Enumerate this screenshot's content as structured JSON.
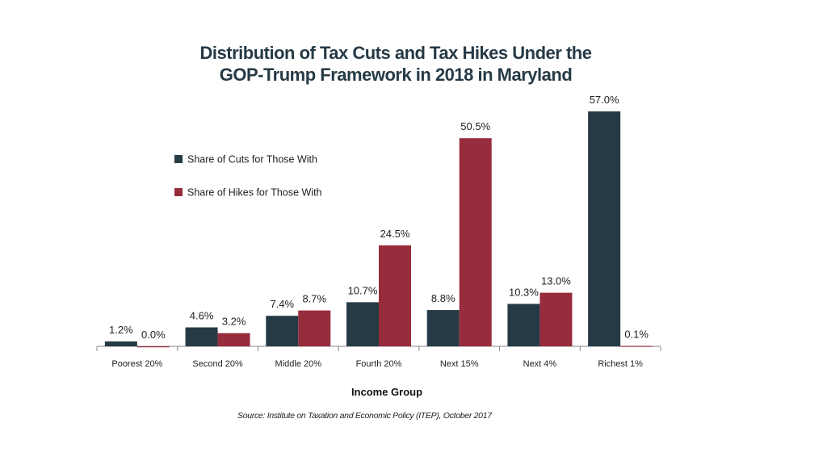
{
  "chart_data": {
    "type": "bar",
    "title_line1": "Distribution of Tax Cuts and Tax Hikes Under the",
    "title_line2": "GOP-Trump Framework in 2018 in Maryland",
    "xlabel": "Income Group",
    "ylabel": "",
    "ylim": [
      0,
      57
    ],
    "grid": false,
    "legend_position": "top-left",
    "categories": [
      "Poorest 20%",
      "Second 20%",
      "Middle 20%",
      "Fourth 20%",
      "Next 15%",
      "Next 4%",
      "Richest 1%"
    ],
    "series": [
      {
        "name": "Share of Cuts for Those With",
        "color": "#263a46",
        "values": [
          1.2,
          4.6,
          7.4,
          10.7,
          8.8,
          10.3,
          57.0
        ],
        "labels": [
          "1.2%",
          "4.6%",
          "7.4%",
          "10.7%",
          "8.8%",
          "10.3%",
          "57.0%"
        ]
      },
      {
        "name": "Share of Hikes for Those With",
        "color": "#972c3c",
        "values": [
          0.0,
          3.2,
          8.7,
          24.5,
          50.5,
          13.0,
          0.1
        ],
        "labels": [
          "0.0%",
          "3.2%",
          "8.7%",
          "24.5%",
          "50.5%",
          "13.0%",
          "0.1%"
        ]
      }
    ],
    "source": "Source: Institute on Taxation and Economic Policy (ITEP), October 2017"
  }
}
